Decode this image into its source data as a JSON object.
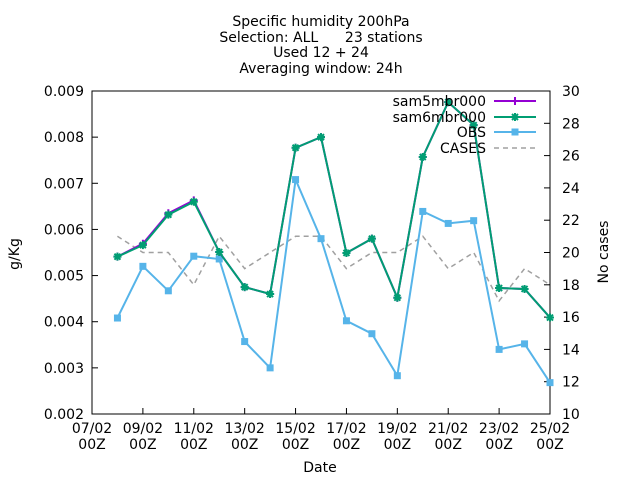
{
  "chart_data": {
    "type": "line",
    "title_lines": [
      "Specific humidity 200hPa",
      "Selection: ALL      23 stations",
      "Used 12 + 24",
      "Averaging window: 24h"
    ],
    "xlabel": "Date",
    "ylabel": "g/Kg",
    "y2label": "No cases",
    "xlim": [
      7,
      25
    ],
    "ylim": [
      0.002,
      0.009
    ],
    "y2lim": [
      10,
      30
    ],
    "grid": false,
    "legend_position": "top-right",
    "x_ticks": [
      {
        "x": 7,
        "line1": "07/02",
        "line2": "00Z"
      },
      {
        "x": 9,
        "line1": "09/02",
        "line2": "00Z"
      },
      {
        "x": 11,
        "line1": "11/02",
        "line2": "00Z"
      },
      {
        "x": 13,
        "line1": "13/02",
        "line2": "00Z"
      },
      {
        "x": 15,
        "line1": "15/02",
        "line2": "00Z"
      },
      {
        "x": 17,
        "line1": "17/02",
        "line2": "00Z"
      },
      {
        "x": 19,
        "line1": "19/02",
        "line2": "00Z"
      },
      {
        "x": 21,
        "line1": "21/02",
        "line2": "00Z"
      },
      {
        "x": 23,
        "line1": "23/02",
        "line2": "00Z"
      },
      {
        "x": 25,
        "line1": "25/02",
        "line2": "00Z"
      }
    ],
    "y_ticks": [
      {
        "v": 0.002,
        "label": "0.002"
      },
      {
        "v": 0.003,
        "label": "0.003"
      },
      {
        "v": 0.004,
        "label": "0.004"
      },
      {
        "v": 0.005,
        "label": "0.005"
      },
      {
        "v": 0.006,
        "label": "0.006"
      },
      {
        "v": 0.007,
        "label": "0.007"
      },
      {
        "v": 0.008,
        "label": "0.008"
      },
      {
        "v": 0.009,
        "label": "0.009"
      }
    ],
    "y2_ticks": [
      {
        "v": 10,
        "label": "10"
      },
      {
        "v": 12,
        "label": "12"
      },
      {
        "v": 14,
        "label": "14"
      },
      {
        "v": 16,
        "label": "16"
      },
      {
        "v": 18,
        "label": "18"
      },
      {
        "v": 20,
        "label": "20"
      },
      {
        "v": 22,
        "label": "22"
      },
      {
        "v": 24,
        "label": "24"
      },
      {
        "v": 26,
        "label": "26"
      },
      {
        "v": 28,
        "label": "28"
      },
      {
        "v": 30,
        "label": "30"
      }
    ],
    "x": [
      8,
      9,
      10,
      11,
      12,
      13,
      14,
      15,
      16,
      17,
      18,
      19,
      20,
      21,
      22,
      23,
      24,
      25
    ],
    "series": [
      {
        "name": "sam5mbr000",
        "axis": "y1",
        "color": "#9400d3",
        "marker": "plus",
        "values": [
          0.00541,
          0.00569,
          0.00635,
          0.00663,
          0.00551,
          0.00475,
          0.0046,
          0.00777,
          0.008,
          0.00549,
          0.0058,
          0.00452,
          0.00757,
          0.00876,
          0.00826,
          0.00473,
          0.00471,
          0.00409
        ]
      },
      {
        "name": "sam6mbr000",
        "axis": "y1",
        "color": "#009e73",
        "marker": "star",
        "values": [
          0.00541,
          0.00566,
          0.00632,
          0.0066,
          0.00551,
          0.00475,
          0.0046,
          0.00777,
          0.008,
          0.00549,
          0.0058,
          0.00452,
          0.00757,
          0.00876,
          0.00826,
          0.00473,
          0.00471,
          0.00409
        ]
      },
      {
        "name": "OBS",
        "axis": "y1",
        "color": "#56b4e9",
        "marker": "square",
        "values": [
          0.00408,
          0.0052,
          0.00467,
          0.00542,
          0.00536,
          0.00357,
          0.003,
          0.00708,
          0.0058,
          0.00402,
          0.00374,
          0.00283,
          0.00639,
          0.00613,
          0.00619,
          0.0034,
          0.00352,
          0.00268
        ]
      },
      {
        "name": "CASES",
        "axis": "y2",
        "color": "#a0a0a0",
        "marker": "none",
        "dashed": true,
        "values": [
          21,
          20,
          20,
          18,
          21,
          19,
          20,
          21,
          21,
          19,
          20,
          20,
          21,
          19,
          20,
          17,
          19,
          18
        ]
      }
    ]
  }
}
